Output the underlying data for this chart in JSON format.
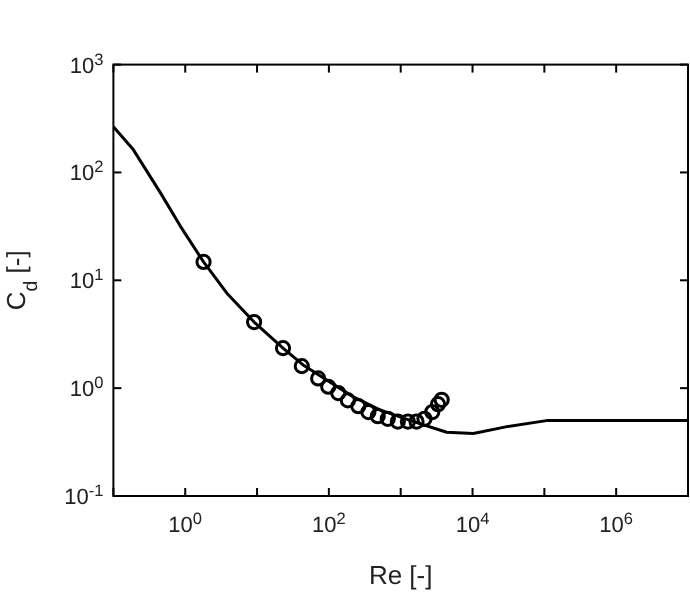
{
  "chart_data": {
    "type": "line",
    "xlabel": "Re [-]",
    "ylabel": "C$_{d}$ [-]",
    "log": "xy",
    "xlim": [
      0.1,
      10000000
    ],
    "ylim": [
      0.1,
      1000
    ],
    "xticks": [
      {
        "value": 0.1,
        "label": null
      },
      {
        "value": 1,
        "label": "10$^{0}$"
      },
      {
        "value": 10,
        "label": null
      },
      {
        "value": 100,
        "label": "10$^{2}$"
      },
      {
        "value": 1000,
        "label": null
      },
      {
        "value": 10000,
        "label": "10$^{4}$"
      },
      {
        "value": 100000,
        "label": null
      },
      {
        "value": 1000000,
        "label": "10$^{6}$"
      },
      {
        "value": 10000000,
        "label": null
      }
    ],
    "yticks": [
      {
        "value": 0.1,
        "label": "10$^{-1}$"
      },
      {
        "value": 1,
        "label": "10$^{0}$"
      },
      {
        "value": 10,
        "label": "10$^{1}$"
      },
      {
        "value": 100,
        "label": "10$^{2}$"
      },
      {
        "value": 1000,
        "label": "10$^{3}$"
      }
    ],
    "grid": false,
    "series": [
      {
        "color": "#000000",
        "line_style": "solid",
        "marker": "none",
        "x": [
          0.1,
          0.19,
          0.45,
          0.85,
          1.8,
          3.8,
          9.1,
          23,
          45,
          93,
          219,
          513,
          1514,
          4365,
          10233,
          30200,
          107000,
          398000,
          10000000
        ],
        "values": [
          266,
          162,
          65,
          32,
          14.8,
          7.6,
          4.1,
          2.35,
          1.62,
          1.19,
          0.83,
          0.63,
          0.49,
          0.39,
          0.38,
          0.44,
          0.5,
          0.5,
          0.5
        ]
      },
      {
        "type": "scatter",
        "color": "#000000",
        "marker": "circle",
        "x": [
          1.8,
          9.1,
          23,
          42,
          71,
          98,
          135,
          184,
          257,
          355,
          479,
          661,
          912,
          1259,
          1660,
          2140,
          2750,
          3310,
          3720
        ],
        "values": [
          14.8,
          4.1,
          2.35,
          1.6,
          1.23,
          1.03,
          0.9,
          0.77,
          0.68,
          0.6,
          0.55,
          0.52,
          0.49,
          0.49,
          0.49,
          0.52,
          0.6,
          0.71,
          0.78
        ]
      }
    ]
  }
}
